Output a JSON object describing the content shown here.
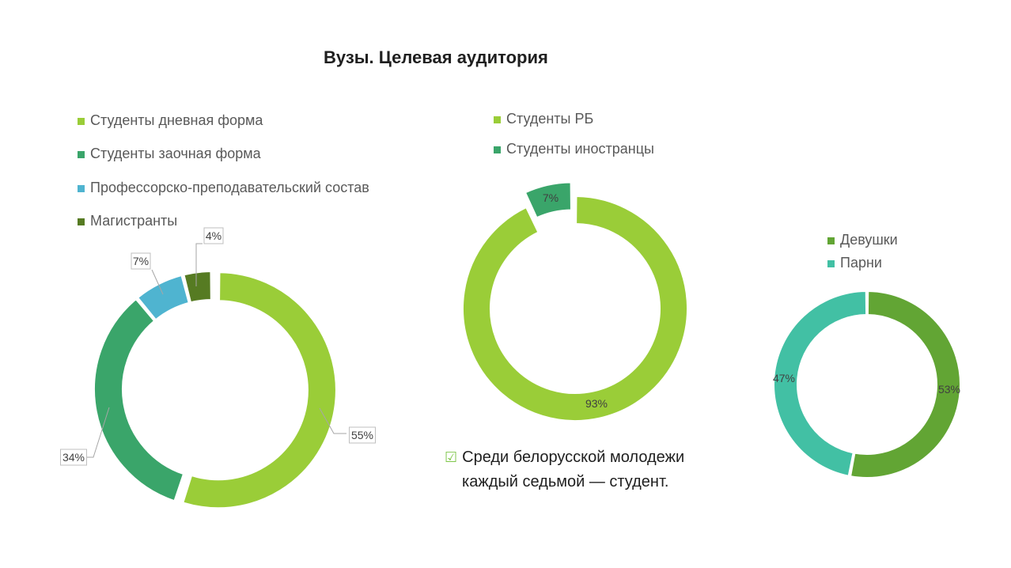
{
  "title": "Вузы. Целевая аудитория",
  "note": {
    "line1": "Среди белорусской молодежи",
    "line2": "каждый седьмой — студент."
  },
  "chart_data": [
    {
      "type": "pie",
      "donut": true,
      "categories": [
        "Студенты дневная форма",
        "Студенты заочная форма",
        "Профессорско-преподавательский состав",
        "Магистранты"
      ],
      "values": [
        55,
        34,
        7,
        4
      ],
      "labels": [
        "55%",
        "34%",
        "7%",
        "4%"
      ],
      "colors": [
        "#9acd38",
        "#3aa56a",
        "#4fb4d0",
        "#567b22"
      ],
      "legend": "top"
    },
    {
      "type": "pie",
      "donut": true,
      "categories": [
        "Студенты РБ",
        "Студенты иностранцы"
      ],
      "values": [
        93,
        7
      ],
      "labels": [
        "93%",
        "7%"
      ],
      "colors": [
        "#9acd38",
        "#3aa56a"
      ],
      "legend": "top"
    },
    {
      "type": "pie",
      "donut": true,
      "categories": [
        "Девушки",
        "Парни"
      ],
      "values": [
        53,
        47
      ],
      "labels": [
        "53%",
        "47%"
      ],
      "colors": [
        "#62a534",
        "#42c0a4"
      ],
      "legend": "top"
    }
  ]
}
